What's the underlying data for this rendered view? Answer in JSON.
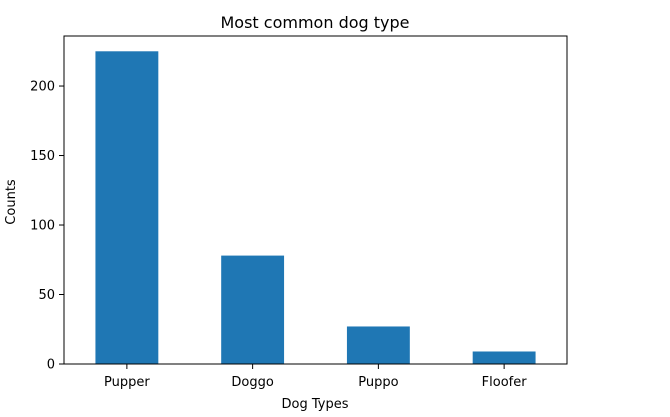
{
  "chart_data": {
    "type": "bar",
    "title": "Most common dog type",
    "xlabel": "Dog Types",
    "ylabel": "Counts",
    "categories": [
      "Pupper",
      "Doggo",
      "Puppo",
      "Floofer"
    ],
    "values": [
      225,
      78,
      27,
      9
    ],
    "ylim": [
      0,
      236
    ],
    "yticks": [
      0,
      50,
      100,
      150,
      200
    ],
    "bar_color": "#1f77b4",
    "grid": false,
    "legend": "none"
  }
}
